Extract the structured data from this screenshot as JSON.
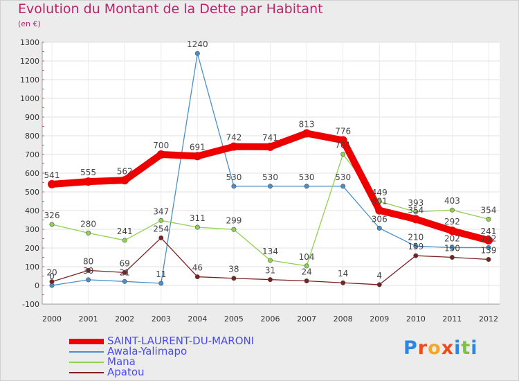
{
  "header": {
    "title": "Evolution du Montant de la Dette par Habitant",
    "subtitle": "(en €)"
  },
  "logo": {
    "text": "Proxiti",
    "letter_colors": [
      "#2e86de",
      "#e94e1b",
      "#f5a623",
      "#e94e1b",
      "#2e86de",
      "#7cc242",
      "#2e86de"
    ]
  },
  "chart_data": {
    "type": "line",
    "title": "Evolution du Montant de la Dette par Habitant",
    "subtitle": "(en €)",
    "xlabel": "",
    "ylabel": "",
    "x": [
      "2000",
      "2001",
      "2002",
      "2003",
      "2004",
      "2005",
      "2006",
      "2007",
      "2008",
      "2009",
      "2010",
      "2011",
      "2012"
    ],
    "ylim": [
      -100,
      1300
    ],
    "yticks": [
      -100,
      0,
      100,
      200,
      300,
      400,
      500,
      600,
      700,
      800,
      900,
      1000,
      1100,
      1200,
      1300
    ],
    "grid": true,
    "legend_position": "bottom-left",
    "series": [
      {
        "name": "SAINT-LAURENT-DU-MARONI",
        "color": "#ee0000",
        "values": [
          541,
          555,
          562,
          700,
          691,
          742,
          741,
          813,
          776,
          401,
          354,
          292,
          241
        ],
        "labels": [
          "541",
          "555",
          "562",
          "700",
          "691",
          "742",
          "741",
          "813",
          "776",
          "401",
          "354",
          "292",
          "241"
        ]
      },
      {
        "name": "Awala-Yalimapo",
        "color": "#4a90c8",
        "values": [
          0,
          30,
          21,
          11,
          1240,
          530,
          530,
          530,
          530,
          306,
          210,
          202,
          202
        ],
        "labels": [
          "0",
          "30",
          "21",
          "11",
          "1240",
          "530",
          "530",
          "530",
          "530",
          "306",
          "210",
          "202",
          "202"
        ]
      },
      {
        "name": "Mana",
        "color": "#8fd14f",
        "values": [
          326,
          280,
          241,
          347,
          311,
          299,
          134,
          104,
          701,
          449,
          393,
          403,
          354
        ],
        "labels": [
          "326",
          "280",
          "241",
          "347",
          "311",
          "299",
          "134",
          "104",
          "701",
          "449",
          "393",
          "403",
          "354"
        ]
      },
      {
        "name": "Apatou",
        "color": "#7a2020",
        "values": [
          20,
          80,
          69,
          254,
          46,
          38,
          31,
          24,
          14,
          4,
          159,
          150,
          139
        ],
        "labels": [
          "20",
          "80",
          "69",
          "254",
          "46",
          "38",
          "31",
          "24",
          "14",
          "4",
          "159",
          "150",
          "139"
        ]
      }
    ]
  }
}
